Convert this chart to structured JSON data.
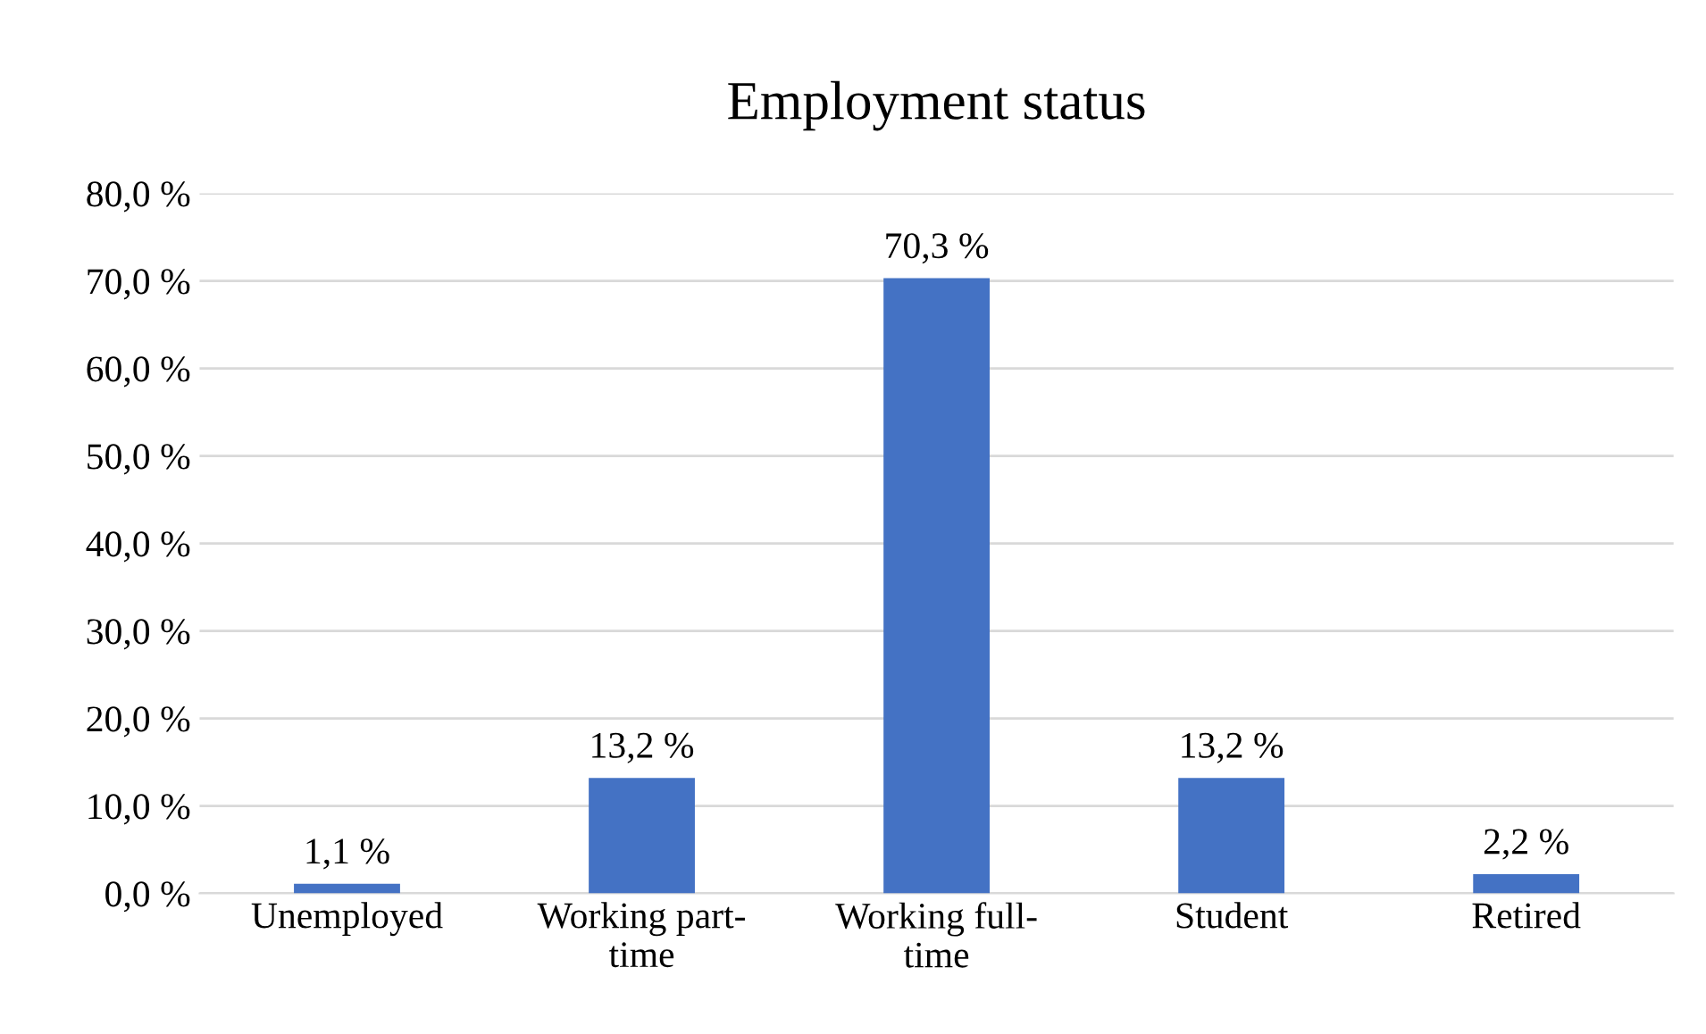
{
  "chart_data": {
    "type": "bar",
    "title": "Employment status",
    "categories": [
      "Unemployed",
      "Working part-time",
      "Working full-time",
      "Student",
      "Retired"
    ],
    "values": [
      1.1,
      13.2,
      70.3,
      13.2,
      2.2
    ],
    "value_labels": [
      "1,1 %",
      "13,2 %",
      "70,3 %",
      "13,2 %",
      "2,2 %"
    ],
    "color": "#4472c4",
    "ylim": [
      0,
      80
    ],
    "yticks": [
      {
        "value": 0,
        "label": "0,0 %"
      },
      {
        "value": 10,
        "label": "10,0 %"
      },
      {
        "value": 20,
        "label": "20,0 %"
      },
      {
        "value": 30,
        "label": "30,0 %"
      },
      {
        "value": 40,
        "label": "40,0 %"
      },
      {
        "value": 50,
        "label": "50,0 %"
      },
      {
        "value": 60,
        "label": "60,0 %"
      },
      {
        "value": 70,
        "label": "70,0 %"
      },
      {
        "value": 80,
        "label": "80,0 %"
      }
    ],
    "grid": "y",
    "legend": false
  }
}
